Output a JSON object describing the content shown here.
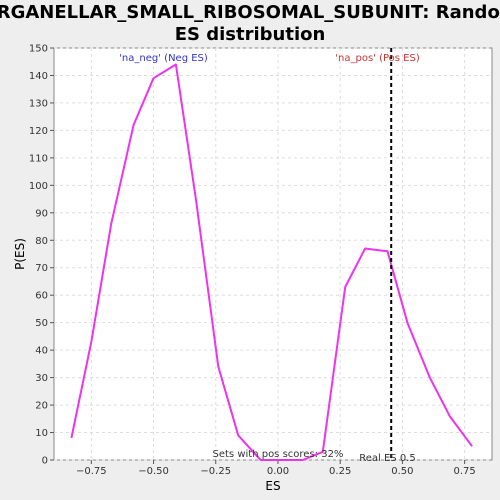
{
  "chart_data": {
    "type": "line",
    "title_line1": "ORGANELLAR_SMALL_RIBOSOMAL_SUBUNIT: Random",
    "title_line2": "ES distribution",
    "xlabel": "ES",
    "ylabel": "P(ES)",
    "xlim": [
      -0.9,
      0.86
    ],
    "ylim": [
      0,
      150
    ],
    "x_ticks": [
      -0.75,
      -0.5,
      -0.25,
      0.0,
      0.25,
      0.5,
      0.75
    ],
    "x_tick_labels": [
      "−0.75",
      "−0.50",
      "−0.25",
      "0.00",
      "0.25",
      "0.50",
      "0.75"
    ],
    "y_ticks": [
      0,
      10,
      20,
      30,
      40,
      50,
      60,
      70,
      80,
      90,
      100,
      110,
      120,
      130,
      140,
      150
    ],
    "y_tick_labels": [
      "0",
      "10",
      "20",
      "30",
      "40",
      "50",
      "60",
      "70",
      "80",
      "90",
      "100",
      "110",
      "120",
      "130",
      "140",
      "150"
    ],
    "grid": true,
    "series": [
      {
        "color": "#ee33ee",
        "x": [
          -0.83,
          -0.75,
          -0.67,
          -0.58,
          -0.5,
          -0.41,
          -0.33,
          -0.24,
          -0.16,
          -0.07,
          0.01,
          0.1,
          0.18,
          0.27,
          0.35,
          0.44,
          0.52,
          0.61,
          0.69,
          0.78
        ],
        "y": [
          8,
          43,
          86,
          122,
          139,
          144,
          95,
          34,
          9,
          0,
          0,
          0,
          3,
          63,
          77,
          76,
          50,
          30,
          16,
          5
        ]
      }
    ],
    "real_es": 0.455,
    "real_es_label": "Real ES 0.5",
    "neg_label": "'na_neg' (Neg ES)",
    "pos_label": "'na_pos' (Pos ES)",
    "sets_label": "Sets with pos scores: 32%",
    "colors": {
      "line": "#ee33ee",
      "neg_text": "#3333cc",
      "pos_text": "#cc3333",
      "plot_bg": "#ffffff",
      "page_bg": "#eeeeee",
      "grid": "#dddddd"
    }
  }
}
